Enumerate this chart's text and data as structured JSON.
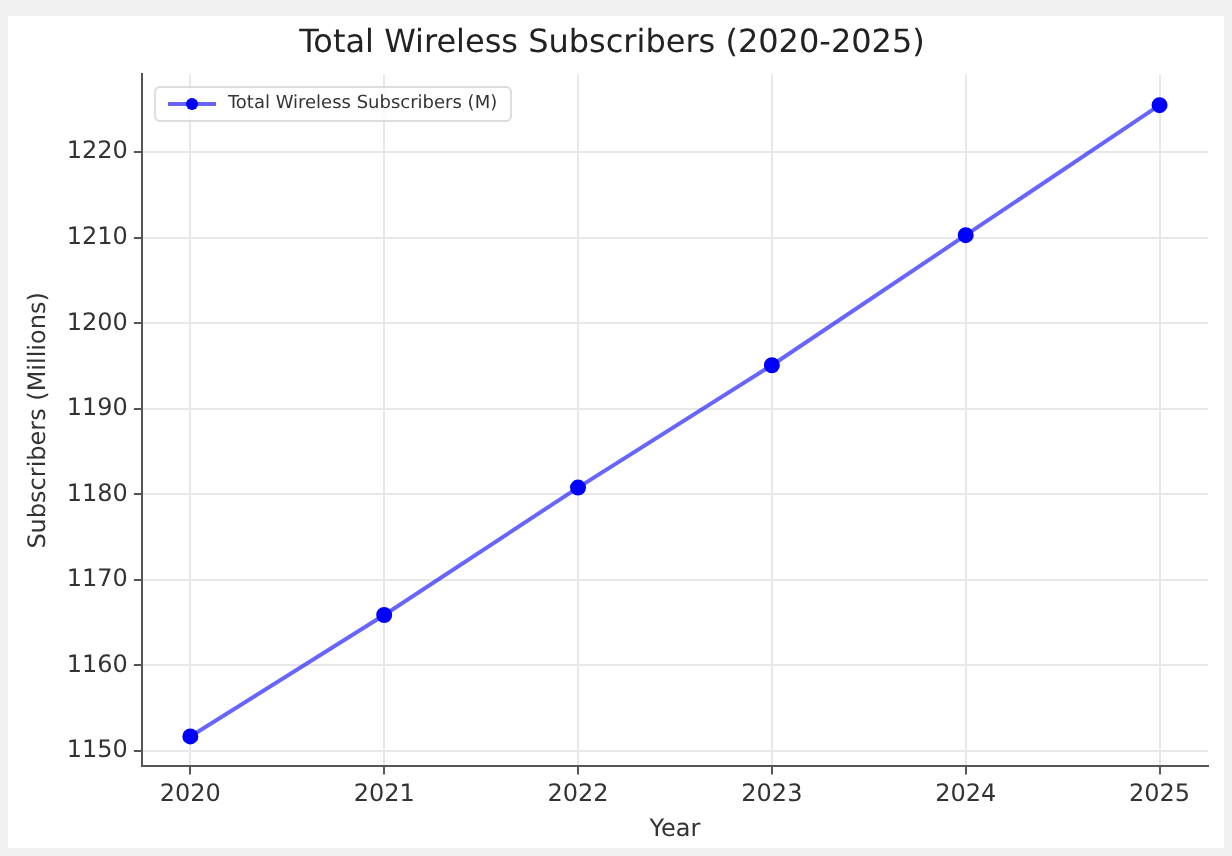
{
  "chart_data": {
    "type": "line",
    "title": "Total Wireless Subscribers (2020-2025)",
    "xlabel": "Year",
    "ylabel": "Subscribers (Millions)",
    "x": [
      2020,
      2021,
      2022,
      2023,
      2024,
      2025
    ],
    "series": [
      {
        "name": "Total Wireless Subscribers (M)",
        "color": "#0000ff",
        "values": [
          1151.7,
          1165.9,
          1180.8,
          1195.1,
          1210.3,
          1225.5
        ]
      }
    ],
    "xlim": [
      2019.75,
      2025.25
    ],
    "xticks": [
      2020,
      2021,
      2022,
      2023,
      2024,
      2025
    ],
    "ylim": [
      1148.2,
      1229.1
    ],
    "yticks": [
      1150,
      1160,
      1170,
      1180,
      1190,
      1200,
      1210,
      1220
    ],
    "grid": true,
    "legend": "top left",
    "marker": "circle",
    "line_style": "solid"
  }
}
